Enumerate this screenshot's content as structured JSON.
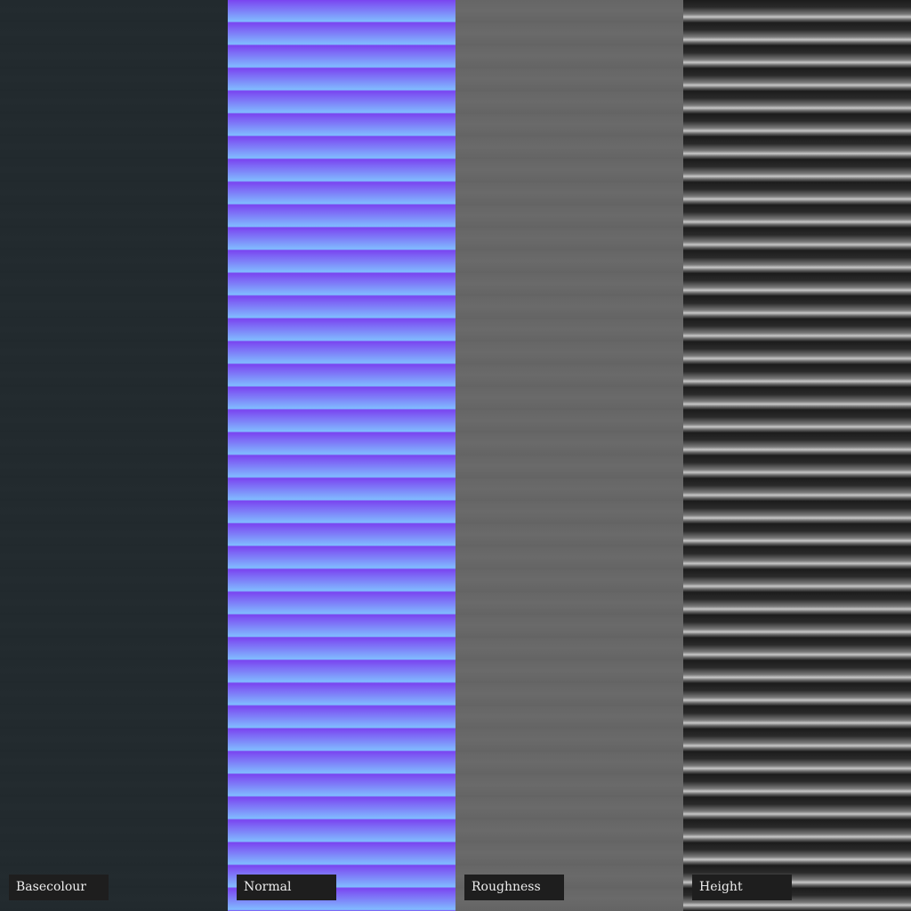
{
  "panels": [
    {
      "label": "Basecolour",
      "color": "#222a2e"
    },
    {
      "label": "Normal",
      "color": "#7a44f0"
    },
    {
      "label": "Roughness",
      "color": "#666666"
    },
    {
      "label": "Height",
      "color": "#1c1c1c"
    }
  ]
}
